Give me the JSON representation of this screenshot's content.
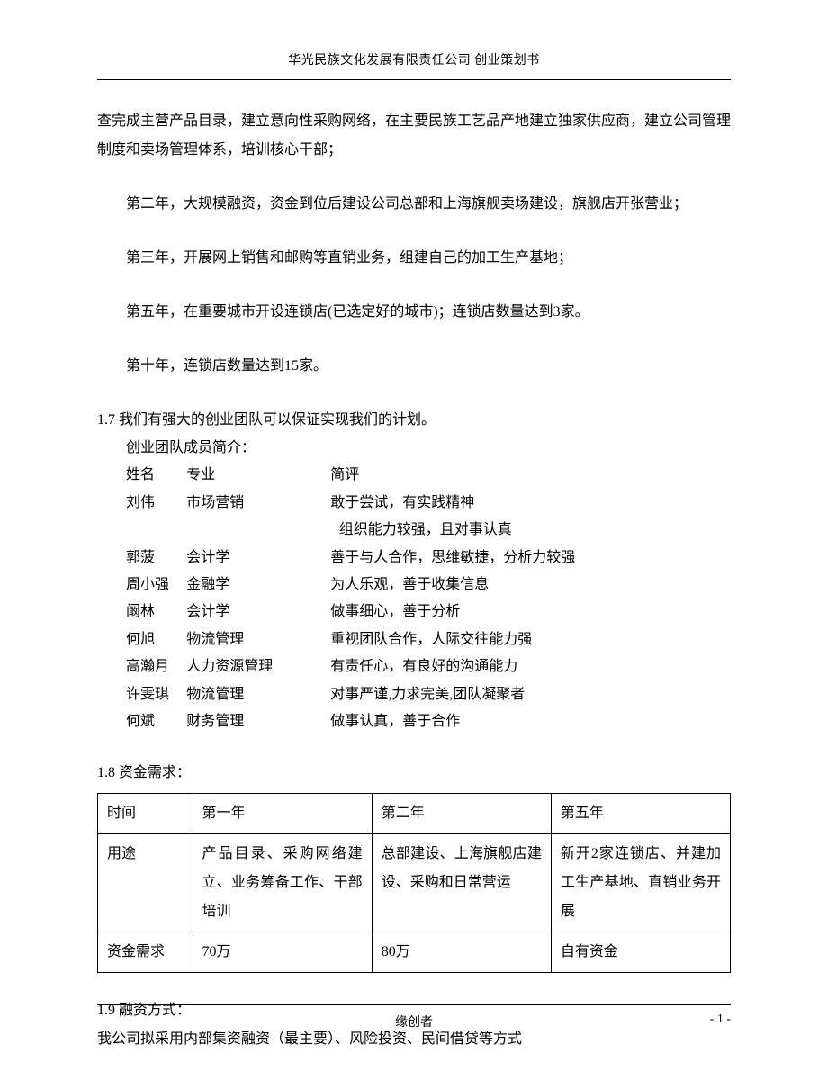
{
  "header": {
    "text": "华光民族文化发展有限责任公司 创业策划书"
  },
  "paragraphs": {
    "p1": "查完成主营产品目录，建立意向性采购网络，在主要民族工艺品产地建立独家供应商，建立公司管理制度和卖场管理体系，培训核心干部；",
    "p2": "第二年，大规模融资，资金到位后建设公司总部和上海旗舰卖场建设，旗舰店开张营业；",
    "p3": "第三年，开展网上销售和邮购等直销业务，组建自己的加工生产基地；",
    "p4": "第五年，在重要城市开设连锁店(已选定好的城市)；连锁店数量达到3家。",
    "p5": "第十年，连锁店数量达到15家。"
  },
  "section17": {
    "title": "1.7 我们有强大的创业团队可以保证实现我们的计划。",
    "intro": "创业团队成员简介：",
    "header": {
      "name": "姓名",
      "major": "专业",
      "comment": "简评"
    },
    "members": [
      {
        "name": "刘伟",
        "major": "市场营销",
        "comment": "敢于尝试，有实践精神",
        "extra": "组织能力较强，且对事认真"
      },
      {
        "name": "郭菠",
        "major": "会计学",
        "comment": "善于与人合作，思维敏捷，分析力较强"
      },
      {
        "name": "周小强",
        "major": "金融学",
        "comment": "为人乐观，善于收集信息"
      },
      {
        "name": "阚林",
        "major": "会计学",
        "comment": "做事细心，善于分析"
      },
      {
        "name": "何旭",
        "major": "物流管理",
        "comment": "重视团队合作，人际交往能力强"
      },
      {
        "name": "高瀚月",
        "major": "人力资源管理",
        "comment": "有责任心，有良好的沟通能力"
      },
      {
        "name": "许雯琪",
        "major": "物流管理",
        "comment": "对事严谨,力求完美,团队凝聚者"
      },
      {
        "name": "何斌",
        "major": "财务管理",
        "comment": "做事认真，善于合作"
      }
    ]
  },
  "section18": {
    "title": "1.8 资金需求：",
    "table": {
      "rows": [
        {
          "c1": "时间",
          "c2": "第一年",
          "c3": "第二年",
          "c4": "第五年"
        },
        {
          "c1": "用途",
          "c2": "产品目录、采购网络建立、业务筹备工作、干部培训",
          "c3": "总部建设、上海旗舰店建设、采购和日常营运",
          "c4": "新开2家连锁店、并建加工生产基地、直销业务开展"
        },
        {
          "c1": "资金需求",
          "c2": "70万",
          "c3": "80万",
          "c4": "自有资金"
        }
      ]
    }
  },
  "section19": {
    "title": "1.9 融资方式：",
    "body": "我公司拟采用内部集资融资（最主要）、风险投资、民间借贷等方式"
  },
  "footer": {
    "center": "缘创者",
    "right": "- 1 -"
  }
}
